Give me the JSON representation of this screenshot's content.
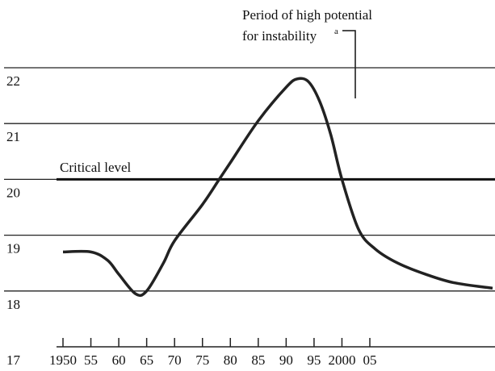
{
  "chart_data": {
    "type": "line",
    "annotations": {
      "period_line1": "Period of high potential",
      "period_line2": "for instability",
      "footnote_marker": "a"
    },
    "critical_level": {
      "label": "Critical level",
      "value": 20
    },
    "series": [
      {
        "color": "#222222",
        "x": [
          1950,
          1955,
          1958,
          1960,
          1963,
          1965,
          1968,
          1970,
          1975,
          1978,
          1980,
          1985,
          1990,
          1992,
          1994,
          1996,
          1998,
          2000,
          2003,
          2006,
          2010,
          2015,
          2020,
          2027
        ],
        "values": [
          18.7,
          18.7,
          18.55,
          18.3,
          17.95,
          18.0,
          18.5,
          18.9,
          19.55,
          20.0,
          20.3,
          21.05,
          21.65,
          21.8,
          21.75,
          21.4,
          20.8,
          20.0,
          19.1,
          18.75,
          18.5,
          18.3,
          18.15,
          18.05
        ]
      }
    ],
    "xlim": [
      1950,
      2027
    ],
    "xticks": [
      1950,
      {
        "value": 1955,
        "label": "55"
      },
      {
        "value": 1960,
        "label": "60"
      },
      {
        "value": 1965,
        "label": "65"
      },
      {
        "value": 1970,
        "label": "70"
      },
      {
        "value": 1975,
        "label": "75"
      },
      {
        "value": 1980,
        "label": "80"
      },
      {
        "value": 1985,
        "label": "85"
      },
      {
        "value": 1990,
        "label": "90"
      },
      {
        "value": 1995,
        "label": "95"
      },
      2000,
      {
        "value": 2005,
        "label": "05"
      }
    ],
    "ylim": [
      17,
      22.5
    ],
    "yticks": [
      17,
      18,
      19,
      20,
      21,
      22
    ],
    "grid": true
  }
}
